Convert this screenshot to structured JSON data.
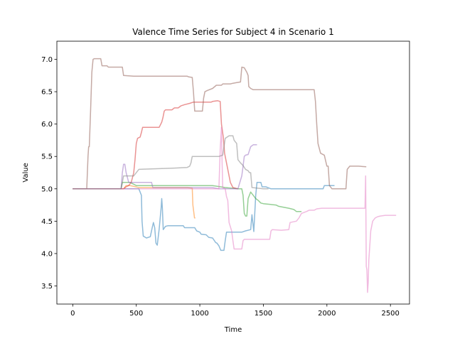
{
  "chart_data": {
    "type": "line",
    "title": "Valence Time Series for Subject 4 in Scenario 1",
    "xlabel": "Time",
    "ylabel": "Value",
    "xlim": [
      -125,
      2650
    ],
    "ylim": [
      3.22,
      7.28
    ],
    "xticks": [
      0,
      500,
      1000,
      1500,
      2000,
      2500
    ],
    "yticks": [
      3.5,
      4.0,
      4.5,
      5.0,
      5.5,
      6.0,
      6.5,
      7.0
    ],
    "xtick_labels": [
      "0",
      "500",
      "1000",
      "1500",
      "2000",
      "2500"
    ],
    "ytick_labels": [
      "3.5",
      "4.0",
      "4.5",
      "5.0",
      "5.5",
      "6.0",
      "6.5",
      "7.0"
    ],
    "grid": false,
    "legend": false,
    "series": [
      {
        "color": "#1f77b4",
        "points": [
          [
            0,
            5.0
          ],
          [
            520,
            5.0
          ],
          [
            540,
            4.9
          ],
          [
            545,
            4.5
          ],
          [
            555,
            4.27
          ],
          [
            580,
            4.24
          ],
          [
            610,
            4.26
          ],
          [
            625,
            4.4
          ],
          [
            635,
            4.48
          ],
          [
            645,
            4.4
          ],
          [
            655,
            4.16
          ],
          [
            665,
            4.13
          ],
          [
            680,
            4.38
          ],
          [
            695,
            4.7
          ],
          [
            700,
            4.85
          ],
          [
            705,
            4.7
          ],
          [
            712,
            4.37
          ],
          [
            730,
            4.42
          ],
          [
            750,
            4.43
          ],
          [
            870,
            4.43
          ],
          [
            880,
            4.4
          ],
          [
            960,
            4.4
          ],
          [
            975,
            4.35
          ],
          [
            1000,
            4.33
          ],
          [
            1010,
            4.3
          ],
          [
            1050,
            4.29
          ],
          [
            1070,
            4.25
          ],
          [
            1100,
            4.24
          ],
          [
            1125,
            4.17
          ],
          [
            1135,
            4.16
          ],
          [
            1150,
            4.12
          ],
          [
            1165,
            4.05
          ],
          [
            1190,
            4.05
          ],
          [
            1200,
            4.2
          ],
          [
            1210,
            4.33
          ],
          [
            1330,
            4.33
          ],
          [
            1360,
            4.35
          ],
          [
            1400,
            4.37
          ],
          [
            1410,
            4.6
          ],
          [
            1420,
            4.42
          ],
          [
            1425,
            4.34
          ],
          [
            1440,
            4.9
          ],
          [
            1450,
            5.1
          ],
          [
            1480,
            5.1
          ],
          [
            1490,
            5.03
          ],
          [
            1520,
            5.03
          ],
          [
            1560,
            5.0
          ],
          [
            1780,
            5.0
          ],
          [
            1900,
            5.0
          ],
          [
            1970,
            5.0
          ],
          [
            1980,
            5.05
          ],
          [
            2060,
            5.05
          ]
        ]
      },
      {
        "color": "#ff7f0e",
        "points": [
          [
            0,
            5.0
          ],
          [
            400,
            5.0
          ],
          [
            420,
            5.05
          ],
          [
            450,
            5.05
          ],
          [
            520,
            5.02
          ],
          [
            900,
            5.02
          ],
          [
            940,
            5.01
          ],
          [
            945,
            4.75
          ],
          [
            958,
            4.55
          ],
          [
            965,
            4.55
          ]
        ]
      },
      {
        "color": "#2ca02c",
        "points": [
          [
            0,
            5.0
          ],
          [
            380,
            5.0
          ],
          [
            390,
            5.1
          ],
          [
            450,
            5.1
          ],
          [
            500,
            5.05
          ],
          [
            1100,
            5.05
          ],
          [
            1200,
            5.02
          ],
          [
            1300,
            5.0
          ],
          [
            1330,
            5.0
          ],
          [
            1340,
            4.9
          ],
          [
            1350,
            4.62
          ],
          [
            1360,
            4.58
          ],
          [
            1370,
            4.58
          ],
          [
            1380,
            4.85
          ],
          [
            1400,
            4.95
          ],
          [
            1420,
            4.9
          ],
          [
            1440,
            4.85
          ],
          [
            1460,
            4.82
          ],
          [
            1480,
            4.78
          ],
          [
            1500,
            4.77
          ],
          [
            1600,
            4.75
          ],
          [
            1620,
            4.73
          ],
          [
            1700,
            4.7
          ],
          [
            1740,
            4.68
          ],
          [
            1760,
            4.65
          ],
          [
            1800,
            4.65
          ]
        ]
      },
      {
        "color": "#d62728",
        "points": [
          [
            0,
            5.0
          ],
          [
            400,
            5.0
          ],
          [
            420,
            5.03
          ],
          [
            440,
            5.05
          ],
          [
            460,
            5.1
          ],
          [
            480,
            5.25
          ],
          [
            490,
            5.45
          ],
          [
            500,
            5.7
          ],
          [
            510,
            5.78
          ],
          [
            530,
            5.8
          ],
          [
            540,
            5.87
          ],
          [
            550,
            5.95
          ],
          [
            680,
            5.95
          ],
          [
            700,
            6.03
          ],
          [
            710,
            6.1
          ],
          [
            720,
            6.2
          ],
          [
            730,
            6.22
          ],
          [
            780,
            6.22
          ],
          [
            800,
            6.25
          ],
          [
            830,
            6.25
          ],
          [
            850,
            6.28
          ],
          [
            880,
            6.3
          ],
          [
            920,
            6.32
          ],
          [
            950,
            6.34
          ],
          [
            1090,
            6.34
          ],
          [
            1100,
            6.35
          ],
          [
            1140,
            6.36
          ],
          [
            1160,
            6.35
          ],
          [
            1170,
            6.0
          ],
          [
            1185,
            5.8
          ],
          [
            1195,
            5.55
          ],
          [
            1205,
            5.45
          ],
          [
            1220,
            5.3
          ],
          [
            1240,
            5.1
          ],
          [
            1260,
            5.02
          ],
          [
            1300,
            5.0
          ]
        ]
      },
      {
        "color": "#9467bd",
        "points": [
          [
            0,
            5.0
          ],
          [
            380,
            5.0
          ],
          [
            390,
            5.25
          ],
          [
            400,
            5.38
          ],
          [
            410,
            5.38
          ],
          [
            420,
            5.25
          ],
          [
            440,
            5.1
          ],
          [
            520,
            5.1
          ],
          [
            540,
            5.1
          ],
          [
            560,
            5.1
          ],
          [
            620,
            5.1
          ],
          [
            630,
            5.02
          ],
          [
            1100,
            5.02
          ],
          [
            1150,
            5.0
          ],
          [
            1300,
            5.0
          ],
          [
            1330,
            5.2
          ],
          [
            1340,
            5.35
          ],
          [
            1350,
            5.5
          ],
          [
            1360,
            5.52
          ],
          [
            1380,
            5.53
          ],
          [
            1400,
            5.65
          ],
          [
            1420,
            5.68
          ],
          [
            1450,
            5.68
          ]
        ]
      },
      {
        "color": "#8c564b",
        "points": [
          [
            0,
            5.0
          ],
          [
            110,
            5.0
          ],
          [
            120,
            5.5
          ],
          [
            125,
            5.65
          ],
          [
            130,
            5.65
          ],
          [
            140,
            6.2
          ],
          [
            150,
            6.8
          ],
          [
            160,
            7.0
          ],
          [
            170,
            7.01
          ],
          [
            220,
            7.01
          ],
          [
            230,
            6.9
          ],
          [
            270,
            6.9
          ],
          [
            280,
            6.88
          ],
          [
            390,
            6.88
          ],
          [
            400,
            6.75
          ],
          [
            480,
            6.74
          ],
          [
            900,
            6.74
          ],
          [
            910,
            6.73
          ],
          [
            940,
            6.72
          ],
          [
            950,
            6.5
          ],
          [
            960,
            6.2
          ],
          [
            1000,
            6.2
          ],
          [
            1010,
            6.2
          ],
          [
            1020,
            6.2
          ],
          [
            1030,
            6.4
          ],
          [
            1040,
            6.5
          ],
          [
            1060,
            6.52
          ],
          [
            1100,
            6.55
          ],
          [
            1130,
            6.6
          ],
          [
            1170,
            6.6
          ],
          [
            1180,
            6.62
          ],
          [
            1240,
            6.62
          ],
          [
            1260,
            6.63
          ],
          [
            1290,
            6.64
          ],
          [
            1320,
            6.65
          ],
          [
            1330,
            6.88
          ],
          [
            1350,
            6.87
          ],
          [
            1370,
            6.8
          ],
          [
            1380,
            6.75
          ],
          [
            1385,
            6.58
          ],
          [
            1400,
            6.55
          ],
          [
            1420,
            6.53
          ],
          [
            1900,
            6.53
          ],
          [
            1910,
            6.35
          ],
          [
            1920,
            6.0
          ],
          [
            1930,
            5.7
          ],
          [
            1950,
            5.55
          ],
          [
            1980,
            5.52
          ],
          [
            2000,
            5.35
          ],
          [
            2010,
            5.35
          ],
          [
            2020,
            5.05
          ],
          [
            2040,
            5.0
          ],
          [
            2060,
            5.0
          ],
          [
            2080,
            5.0
          ],
          [
            2150,
            5.0
          ],
          [
            2160,
            5.3
          ],
          [
            2180,
            5.35
          ],
          [
            2250,
            5.35
          ],
          [
            2310,
            5.34
          ]
        ]
      },
      {
        "color": "#e377c2",
        "points": [
          [
            0,
            5.0
          ],
          [
            1150,
            5.0
          ],
          [
            1160,
            5.6
          ],
          [
            1170,
            5.95
          ],
          [
            1175,
            5.4
          ],
          [
            1180,
            5.02
          ],
          [
            1200,
            5.0
          ],
          [
            1210,
            4.88
          ],
          [
            1220,
            4.82
          ],
          [
            1230,
            4.48
          ],
          [
            1250,
            4.35
          ],
          [
            1260,
            4.2
          ],
          [
            1270,
            4.07
          ],
          [
            1330,
            4.07
          ],
          [
            1340,
            4.2
          ],
          [
            1350,
            4.22
          ],
          [
            1550,
            4.22
          ],
          [
            1560,
            4.35
          ],
          [
            1570,
            4.37
          ],
          [
            1640,
            4.36
          ],
          [
            1700,
            4.37
          ],
          [
            1710,
            4.48
          ],
          [
            1760,
            4.5
          ],
          [
            1780,
            4.55
          ],
          [
            1800,
            4.62
          ],
          [
            1840,
            4.65
          ],
          [
            1860,
            4.67
          ],
          [
            1900,
            4.67
          ],
          [
            1920,
            4.69
          ],
          [
            1960,
            4.7
          ],
          [
            2300,
            4.7
          ],
          [
            2305,
            5.2
          ],
          [
            2310,
            3.8
          ],
          [
            2315,
            3.75
          ],
          [
            2320,
            3.4
          ],
          [
            2325,
            3.55
          ],
          [
            2330,
            3.9
          ],
          [
            2345,
            4.35
          ],
          [
            2360,
            4.5
          ],
          [
            2380,
            4.55
          ],
          [
            2400,
            4.57
          ],
          [
            2420,
            4.58
          ],
          [
            2460,
            4.59
          ],
          [
            2545,
            4.59
          ]
        ]
      },
      {
        "color": "#7f7f7f",
        "points": [
          [
            0,
            5.0
          ],
          [
            380,
            5.0
          ],
          [
            400,
            5.2
          ],
          [
            480,
            5.2
          ],
          [
            520,
            5.3
          ],
          [
            800,
            5.32
          ],
          [
            900,
            5.33
          ],
          [
            920,
            5.35
          ],
          [
            930,
            5.4
          ],
          [
            940,
            5.5
          ],
          [
            1100,
            5.5
          ],
          [
            1150,
            5.5
          ],
          [
            1180,
            5.52
          ],
          [
            1200,
            5.78
          ],
          [
            1230,
            5.82
          ],
          [
            1260,
            5.82
          ],
          [
            1270,
            5.75
          ],
          [
            1290,
            5.7
          ],
          [
            1300,
            5.45
          ],
          [
            1320,
            5.4
          ],
          [
            1340,
            5.36
          ],
          [
            1360,
            5.3
          ],
          [
            1380,
            5.28
          ],
          [
            1390,
            5.25
          ],
          [
            1400,
            5.25
          ],
          [
            1410,
            5.02
          ],
          [
            1500,
            5.0
          ],
          [
            1540,
            5.0
          ]
        ]
      }
    ]
  }
}
